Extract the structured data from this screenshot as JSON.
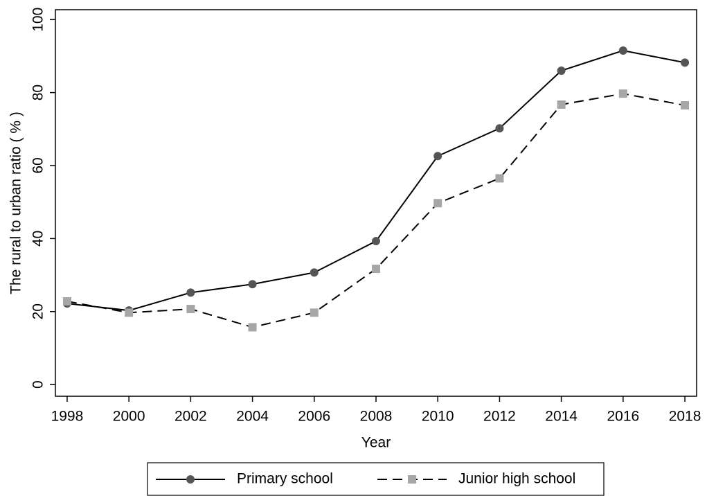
{
  "chart_data": {
    "type": "line",
    "x_label": "Year",
    "y_label": "The rural to urban ratio ( % )",
    "x": [
      1998,
      2000,
      2002,
      2004,
      2006,
      2008,
      2010,
      2012,
      2014,
      2016,
      2018
    ],
    "series": [
      {
        "name": "Primary school",
        "color": "#555555",
        "line_color": "#000000",
        "line_style": "solid",
        "marker": "circle",
        "values": [
          22.2,
          20.3,
          25.2,
          27.5,
          30.7,
          39.3,
          62.6,
          70.2,
          86.0,
          91.5,
          88.2
        ]
      },
      {
        "name": "Junior high school",
        "color": "#a6a6a6",
        "line_color": "#000000",
        "line_style": "dashed",
        "marker": "square",
        "values": [
          22.8,
          19.7,
          20.7,
          15.7,
          19.7,
          31.7,
          49.7,
          56.5,
          76.7,
          79.7,
          76.5
        ]
      }
    ],
    "xlim": [
      1997.62,
      2018.38
    ],
    "ylim": [
      -3.2,
      102.7
    ],
    "xticks": [
      1998,
      2000,
      2002,
      2004,
      2006,
      2008,
      2010,
      2012,
      2014,
      2016,
      2018
    ],
    "yticks": [
      0,
      20,
      40,
      60,
      80,
      100
    ],
    "grid": false,
    "legend_position": "bottom"
  }
}
